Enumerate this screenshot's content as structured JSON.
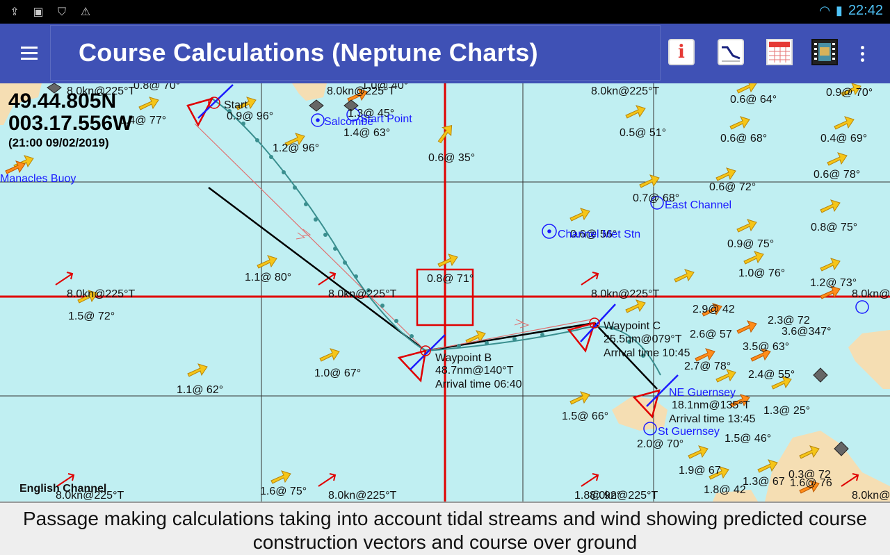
{
  "status_bar": {
    "time": "22:42",
    "left_icons": [
      "up-icon",
      "image-icon",
      "shield-icon",
      "warning-icon"
    ],
    "right_icons": [
      "wifi-icon",
      "battery-icon"
    ]
  },
  "app_bar": {
    "title": "Course Calculations (Neptune Charts)",
    "actions": [
      "info-icon",
      "graph-icon",
      "calendar-icon",
      "film-icon",
      "overflow-menu-icon"
    ]
  },
  "position": {
    "lat": "49.44.805N",
    "lon": "003.17.556W",
    "time": "(21:00 09/02/2019)"
  },
  "places": {
    "salcombe": "Salcombe",
    "start_point": "Start Point",
    "manacles": "Manacles Buoy",
    "east_channel": "East Channel",
    "channel_met": "Channel Met Stn",
    "ne_guernsey": "NE Guernsey",
    "st_guernsey": "St Guernsey",
    "english_channel": "English Channel"
  },
  "route": {
    "start_label": "Start",
    "wp_b": {
      "name": "Waypoint B",
      "dist": "48.7nm@140°T",
      "arrival": "Arrival time 06:40"
    },
    "wp_c": {
      "name": "Waypoint C",
      "dist": "25.5nm@079°T",
      "arrival": "Arrival time 10:45"
    },
    "wp_d": {
      "dist": "18.1nm@135°T",
      "arrival": "Arrival time 13:45"
    }
  },
  "wind": [
    "8.0kn@225°T",
    "8.0kn@225°T",
    "8.0kn@225°T",
    "8.0kn@225°T",
    "8.0kn@225°T",
    "8.0kn@225°T",
    "8.0kn@225°T",
    "8.0kn@225°T",
    "8.0kn@225°T",
    "8.0kn@225°T",
    "8.0kn@225°T",
    "8.0kn@225°T",
    "8.0kn@225°T"
  ],
  "tides": [
    "0.8@ 70°",
    "1.0@ 40°",
    "0.9@ 96°",
    "1.2@ 96°",
    "1.3@ 45°",
    "1.4@ 63°",
    "0.4@ 77°",
    "0.6@ 35°",
    "0.5@ 51°",
    "0.6@ 64°",
    "0.9@ 70°",
    "0.6@ 68°",
    "0.4@ 69°",
    "0.6@ 78°",
    "0.6@ 72°",
    "0.7@ 68°",
    "0.8@ 75°",
    "0.9@ 75°",
    "0.6@ 56°",
    "1.1@ 80°",
    "0.8@ 71°",
    "1.0@ 76°",
    "1.2@ 73°",
    "1.5@ 72°",
    "1.0@ 67°",
    "1.1@ 62°",
    "1.5@ 66°",
    "2.9@ 42",
    "2.6@ 57",
    "3.5@ 63°",
    "3.6@347°",
    "2.3@ 72",
    "2.7@ 78°",
    "2.4@ 55°",
    "1.3@ 25°",
    "1.5@ 46°",
    "2.0@ 70°",
    "1.9@ 67",
    "1.8@ 42",
    "1.3@ 67",
    "1.6@ 75°",
    "1.8@ 92°",
    "0.3@ 72",
    "1.6@ 76"
  ],
  "caption": "Passage making calculations taking into account tidal streams and wind showing predicted course construction vectors and course over ground"
}
